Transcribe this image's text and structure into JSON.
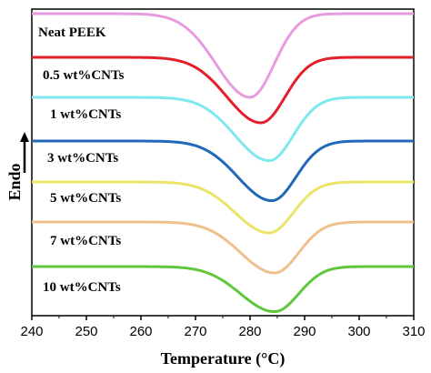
{
  "chart_data": {
    "type": "line",
    "title": "",
    "xlabel": "Temperature (°C)",
    "ylabel": "Endo",
    "xlim": [
      240,
      310
    ],
    "x_ticks": [
      240,
      250,
      260,
      270,
      280,
      290,
      300,
      310
    ],
    "y_ticks_shown": false,
    "y_units": "arbitrary (vertically offset DSC cooling curves)",
    "grid": false,
    "legend": "none (series labelled inline, left side)",
    "series": [
      {
        "name": "Neat PEEK",
        "color": "#e79be0",
        "baseline": 0.0,
        "peak_x": 280,
        "depth": 1.15
      },
      {
        "name": "0.5 wt%CNTs",
        "color": "#e3202a",
        "baseline": 0.0,
        "peak_x": 282,
        "depth": 0.9
      },
      {
        "name": "1 wt%CNTs",
        "color": "#7fe8ef",
        "baseline": 0.0,
        "peak_x": 283.5,
        "depth": 0.87
      },
      {
        "name": "3 wt%CNTs",
        "color": "#2068b8",
        "baseline": 0.0,
        "peak_x": 284,
        "depth": 0.82
      },
      {
        "name": "5 wt%CNTs",
        "color": "#ebe46a",
        "baseline": 0.0,
        "peak_x": 283.5,
        "depth": 0.7
      },
      {
        "name": "7 wt%CNTs",
        "color": "#f0c08c",
        "baseline": 0.0,
        "peak_x": 284.5,
        "depth": 0.7
      },
      {
        "name": "10 wt%CNTs",
        "color": "#5fc83a",
        "baseline": 0.0,
        "peak_x": 284.5,
        "depth": 0.62
      }
    ]
  }
}
